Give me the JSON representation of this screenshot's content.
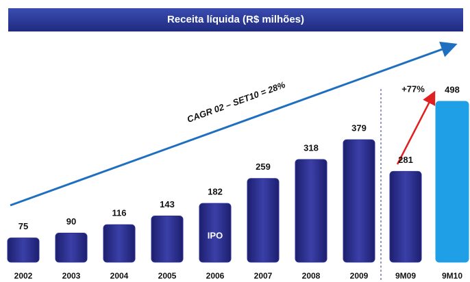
{
  "chart_data": {
    "type": "bar",
    "title": "Receita líquida (R$ milhões)",
    "categories": [
      "2002",
      "2003",
      "2004",
      "2005",
      "2006",
      "2007",
      "2008",
      "2009",
      "9M09",
      "9M10"
    ],
    "values": [
      75,
      90,
      116,
      143,
      182,
      259,
      318,
      379,
      281,
      498
    ],
    "colors": [
      "#2e3192",
      "#2e3192",
      "#2e3192",
      "#2e3192",
      "#2e3192",
      "#2e3192",
      "#2e3192",
      "#2e3192",
      "#2e3192",
      "#1fa0e6"
    ],
    "annotations": [
      "CAGR 02 – SET10 =  28%",
      "+77%",
      "IPO"
    ]
  }
}
